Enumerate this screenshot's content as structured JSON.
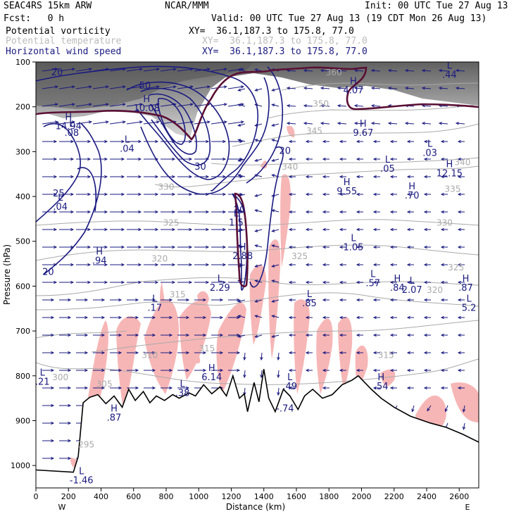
{
  "header": {
    "model": "SEAC4RS 15km ARW",
    "center": "NCAR/MMM",
    "init": "Init: 00 UTC Tue 27 Aug 13",
    "fcst": "Fcst:   0 h",
    "valid": "Valid: 00 UTC Tue 27 Aug 13 (19 CDT Mon 26 Aug 13)",
    "fields": [
      {
        "name": "Potential vorticity",
        "xy": "XY=  36.1,187.3 to 175.8, 77.0",
        "color": "#000000"
      },
      {
        "name": "Potential temperature",
        "xy": "XY=  36.1,187.3 to 175.8, 77.0",
        "color": "#bbbbbb"
      },
      {
        "name": "Horizontal wind speed",
        "xy": "XY=  36.1,187.3 to 175.8, 77.0",
        "color": "#1a1a80"
      }
    ]
  },
  "chart_data": {
    "type": "cross-section",
    "ylabel": "Pressure (hPa)",
    "xlabel": "Distance (km)",
    "x_ticks": [
      0,
      200,
      400,
      600,
      800,
      1000,
      1200,
      1400,
      1600,
      1800,
      2000,
      2200,
      2400,
      2600
    ],
    "y_ticks": [
      100,
      200,
      300,
      400,
      500,
      600,
      700,
      800,
      900,
      1000
    ],
    "xlim": [
      0,
      2720
    ],
    "ylim": [
      1050,
      100
    ],
    "left_end_label": "W",
    "right_end_label": "E",
    "terrain": [
      [
        0,
        1010
      ],
      [
        230,
        1015
      ],
      [
        260,
        980
      ],
      [
        290,
        860
      ],
      [
        330,
        848
      ],
      [
        380,
        842
      ],
      [
        430,
        862
      ],
      [
        480,
        845
      ],
      [
        530,
        870
      ],
      [
        570,
        830
      ],
      [
        610,
        855
      ],
      [
        660,
        835
      ],
      [
        700,
        860
      ],
      [
        740,
        845
      ],
      [
        790,
        855
      ],
      [
        840,
        842
      ],
      [
        880,
        850
      ],
      [
        940,
        838
      ],
      [
        980,
        845
      ],
      [
        1030,
        820
      ],
      [
        1080,
        840
      ],
      [
        1130,
        825
      ],
      [
        1170,
        845
      ],
      [
        1210,
        800
      ],
      [
        1250,
        850
      ],
      [
        1280,
        840
      ],
      [
        1300,
        880
      ],
      [
        1340,
        815
      ],
      [
        1370,
        858
      ],
      [
        1400,
        785
      ],
      [
        1430,
        850
      ],
      [
        1470,
        880
      ],
      [
        1520,
        830
      ],
      [
        1560,
        845
      ],
      [
        1610,
        875
      ],
      [
        1650,
        845
      ],
      [
        1700,
        830
      ],
      [
        1760,
        850
      ],
      [
        1820,
        842
      ],
      [
        1880,
        820
      ],
      [
        1940,
        810
      ],
      [
        1980,
        800
      ],
      [
        2020,
        815
      ],
      [
        2060,
        830
      ],
      [
        2120,
        850
      ],
      [
        2200,
        870
      ],
      [
        2300,
        890
      ],
      [
        2420,
        905
      ],
      [
        2520,
        915
      ],
      [
        2620,
        930
      ],
      [
        2720,
        948
      ]
    ],
    "wind_speed_labels": [
      {
        "x": 130,
        "p": 130,
        "text": "20"
      },
      {
        "x": 670,
        "p": 160,
        "text": "50"
      },
      {
        "x": 1010,
        "p": 340,
        "text": "30"
      },
      {
        "x": 1530,
        "p": 305,
        "text": "20"
      },
      {
        "x": 140,
        "p": 400,
        "text": "25"
      },
      {
        "x": 75,
        "p": 575,
        "text": "20"
      },
      {
        "x": 1250,
        "p": 437,
        "text": "20"
      }
    ],
    "theta_labels": [
      {
        "x": 1830,
        "p": 130,
        "text": "360"
      },
      {
        "x": 1750,
        "p": 200,
        "text": "350"
      },
      {
        "x": 1710,
        "p": 260,
        "text": "345"
      },
      {
        "x": 1560,
        "p": 340,
        "text": "340"
      },
      {
        "x": 800,
        "p": 385,
        "text": "330"
      },
      {
        "x": 830,
        "p": 465,
        "text": "325"
      },
      {
        "x": 760,
        "p": 545,
        "text": "320"
      },
      {
        "x": 870,
        "p": 625,
        "text": "315"
      },
      {
        "x": 1620,
        "p": 540,
        "text": "325"
      },
      {
        "x": 2620,
        "p": 330,
        "text": "340"
      },
      {
        "x": 2560,
        "p": 390,
        "text": "335"
      },
      {
        "x": 2510,
        "p": 465,
        "text": "330"
      },
      {
        "x": 2580,
        "p": 565,
        "text": "325"
      },
      {
        "x": 2450,
        "p": 615,
        "text": "320"
      },
      {
        "x": 2150,
        "p": 760,
        "text": "315"
      },
      {
        "x": 1050,
        "p": 745,
        "text": "315"
      },
      {
        "x": 700,
        "p": 760,
        "text": "310"
      },
      {
        "x": 420,
        "p": 825,
        "text": "305"
      },
      {
        "x": 150,
        "p": 810,
        "text": "300"
      },
      {
        "x": 310,
        "p": 960,
        "text": "295"
      }
    ],
    "extrema": [
      {
        "x": 680,
        "p": 210,
        "type": "H",
        "value": "10.08"
      },
      {
        "x": 1950,
        "p": 170,
        "type": "H",
        "value": "4.07"
      },
      {
        "x": 2540,
        "p": 135,
        "type": "L",
        "value": ".44"
      },
      {
        "x": 200,
        "p": 250,
        "type": "H",
        "value": "14.94"
      },
      {
        "x": 220,
        "p": 265,
        "type": "L",
        "value": ".08"
      },
      {
        "x": 560,
        "p": 300,
        "type": "L",
        "value": ".04"
      },
      {
        "x": 2010,
        "p": 265,
        "type": "H",
        "value": "9.67"
      },
      {
        "x": 2420,
        "p": 310,
        "type": "L",
        "value": ".03"
      },
      {
        "x": 2160,
        "p": 345,
        "type": "L",
        "value": ".05"
      },
      {
        "x": 2540,
        "p": 355,
        "type": "H",
        "value": "12.15"
      },
      {
        "x": 1910,
        "p": 395,
        "type": "H",
        "value": "9.55"
      },
      {
        "x": 2310,
        "p": 405,
        "type": "H",
        "value": ".70"
      },
      {
        "x": 150,
        "p": 430,
        "type": "L",
        "value": ".04"
      },
      {
        "x": 1230,
        "p": 465,
        "type": "L",
        "value": "1.5"
      },
      {
        "x": 1950,
        "p": 520,
        "type": "L",
        "value": "1.05"
      },
      {
        "x": 1270,
        "p": 540,
        "type": "H",
        "value": "2.88"
      },
      {
        "x": 390,
        "p": 550,
        "type": "H",
        "value": ".94"
      },
      {
        "x": 1130,
        "p": 610,
        "type": "L",
        "value": "2.29"
      },
      {
        "x": 2070,
        "p": 600,
        "type": "L",
        "value": ".57"
      },
      {
        "x": 2220,
        "p": 610,
        "type": "H",
        "value": ".84"
      },
      {
        "x": 2310,
        "p": 615,
        "type": "L",
        "value": "2.07"
      },
      {
        "x": 2640,
        "p": 610,
        "type": "H",
        "value": ".87"
      },
      {
        "x": 730,
        "p": 655,
        "type": "L",
        "value": ".17"
      },
      {
        "x": 1680,
        "p": 645,
        "type": "L",
        "value": ".85"
      },
      {
        "x": 2660,
        "p": 655,
        "type": "L",
        "value": "5.2"
      },
      {
        "x": 1080,
        "p": 810,
        "type": "H",
        "value": "6.14"
      },
      {
        "x": 900,
        "p": 845,
        "type": "L",
        "value": ".38"
      },
      {
        "x": 40,
        "p": 820,
        "type": "L",
        "value": ".21"
      },
      {
        "x": 1560,
        "p": 830,
        "type": "L",
        "value": ".49"
      },
      {
        "x": 2120,
        "p": 830,
        "type": "H",
        "value": ".54"
      },
      {
        "x": 480,
        "p": 900,
        "type": "H",
        "value": ".87"
      },
      {
        "x": 1530,
        "p": 880,
        "type": "",
        "value": "-.74"
      },
      {
        "x": 280,
        "p": 1040,
        "type": "L",
        "value": "-1.46"
      }
    ]
  }
}
